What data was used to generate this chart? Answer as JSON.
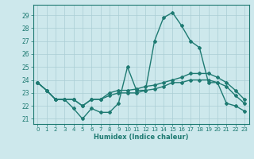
{
  "xlabel": "Humidex (Indice chaleur)",
  "bg_color": "#cde8ec",
  "grid_color": "#aacdd4",
  "line_color": "#1e7a72",
  "x_hours": [
    0,
    1,
    2,
    3,
    4,
    5,
    6,
    7,
    8,
    9,
    10,
    11,
    12,
    13,
    14,
    15,
    16,
    17,
    18,
    19,
    20,
    21,
    22,
    23
  ],
  "curve_main": [
    23.8,
    23.2,
    22.5,
    22.5,
    21.8,
    21.0,
    21.8,
    21.5,
    21.5,
    22.2,
    25.0,
    23.2,
    23.2,
    27.0,
    28.8,
    29.2,
    28.2,
    27.0,
    26.5,
    23.8,
    23.8,
    22.2,
    22.0,
    21.6
  ],
  "curve_upper": [
    23.8,
    23.2,
    22.5,
    22.5,
    22.5,
    22.0,
    22.5,
    22.5,
    23.0,
    23.2,
    23.2,
    23.3,
    23.5,
    23.6,
    23.8,
    24.0,
    24.2,
    24.5,
    24.5,
    24.5,
    24.2,
    23.8,
    23.2,
    22.5
  ],
  "curve_lower": [
    23.8,
    23.2,
    22.5,
    22.5,
    22.5,
    22.0,
    22.5,
    22.5,
    22.8,
    23.0,
    23.0,
    23.0,
    23.2,
    23.3,
    23.5,
    23.8,
    23.8,
    24.0,
    24.0,
    24.0,
    23.8,
    23.5,
    22.8,
    22.2
  ],
  "ylim": [
    20.6,
    29.8
  ],
  "yticks": [
    21,
    22,
    23,
    24,
    25,
    26,
    27,
    28,
    29
  ],
  "xticks": [
    0,
    1,
    2,
    3,
    4,
    5,
    6,
    7,
    8,
    9,
    10,
    11,
    12,
    13,
    14,
    15,
    16,
    17,
    18,
    19,
    20,
    21,
    22,
    23
  ]
}
